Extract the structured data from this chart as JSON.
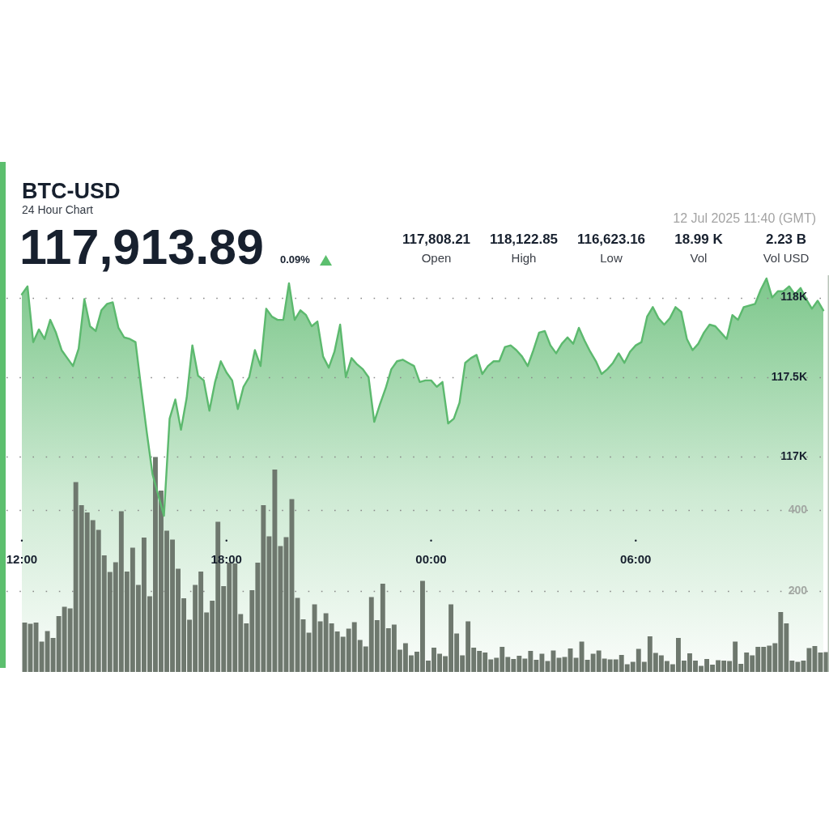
{
  "chart_data": {
    "type": "area",
    "title": "BTC-USD",
    "subtitle": "24 Hour Chart",
    "annotations": [
      "117,913.89",
      "0.09%",
      "12 Jul 2025 11:40 (GMT)",
      "117,808.21",
      "Open",
      "118,122.85",
      "High",
      "116,623.16",
      "Low",
      "18.99 K",
      "Vol",
      "2.23 B",
      "Vol USD"
    ],
    "x": [
      "2025-07-11T12:00",
      "2025-07-11T12:10",
      "2025-07-11T12:20",
      "2025-07-11T12:30",
      "2025-07-11T12:40",
      "2025-07-11T12:50",
      "2025-07-11T13:00",
      "2025-07-11T13:10",
      "2025-07-11T13:20",
      "2025-07-11T13:30",
      "2025-07-11T13:40",
      "2025-07-11T13:50",
      "2025-07-11T14:00",
      "2025-07-11T14:10",
      "2025-07-11T14:20",
      "2025-07-11T14:30",
      "2025-07-11T14:40",
      "2025-07-11T14:50",
      "2025-07-11T15:00",
      "2025-07-11T15:10",
      "2025-07-11T15:20",
      "2025-07-11T15:30",
      "2025-07-11T15:40",
      "2025-07-11T15:50",
      "2025-07-11T16:00",
      "2025-07-11T16:10",
      "2025-07-11T16:20",
      "2025-07-11T16:30",
      "2025-07-11T16:40",
      "2025-07-11T16:50",
      "2025-07-11T17:00",
      "2025-07-11T17:10",
      "2025-07-11T17:20",
      "2025-07-11T17:30",
      "2025-07-11T17:40",
      "2025-07-11T17:50",
      "2025-07-11T18:00",
      "2025-07-11T18:10",
      "2025-07-11T18:20",
      "2025-07-11T18:30",
      "2025-07-11T18:40",
      "2025-07-11T18:50",
      "2025-07-11T19:00",
      "2025-07-11T19:10",
      "2025-07-11T19:20",
      "2025-07-11T19:30",
      "2025-07-11T19:40",
      "2025-07-11T19:50",
      "2025-07-11T20:00",
      "2025-07-11T20:10",
      "2025-07-11T20:20",
      "2025-07-11T20:30",
      "2025-07-11T20:40",
      "2025-07-11T20:50",
      "2025-07-11T21:00",
      "2025-07-11T21:10",
      "2025-07-11T21:20",
      "2025-07-11T21:30",
      "2025-07-11T21:40",
      "2025-07-11T21:50",
      "2025-07-11T22:00",
      "2025-07-11T22:10",
      "2025-07-11T22:20",
      "2025-07-11T22:30",
      "2025-07-11T22:40",
      "2025-07-11T22:50",
      "2025-07-11T23:00",
      "2025-07-11T23:10",
      "2025-07-11T23:20",
      "2025-07-11T23:30",
      "2025-07-11T23:40",
      "2025-07-11T23:50",
      "2025-07-12T00:00",
      "2025-07-12T00:10",
      "2025-07-12T00:20",
      "2025-07-12T00:30",
      "2025-07-12T00:40",
      "2025-07-12T00:50",
      "2025-07-12T01:00",
      "2025-07-12T01:10",
      "2025-07-12T01:20",
      "2025-07-12T01:30",
      "2025-07-12T01:40",
      "2025-07-12T01:50",
      "2025-07-12T02:00",
      "2025-07-12T02:10",
      "2025-07-12T02:20",
      "2025-07-12T02:30",
      "2025-07-12T02:40",
      "2025-07-12T02:50",
      "2025-07-12T03:00",
      "2025-07-12T03:10",
      "2025-07-12T03:20",
      "2025-07-12T03:30",
      "2025-07-12T03:40",
      "2025-07-12T03:50",
      "2025-07-12T04:00",
      "2025-07-12T04:10",
      "2025-07-12T04:20",
      "2025-07-12T04:30",
      "2025-07-12T04:40",
      "2025-07-12T04:50",
      "2025-07-12T05:00",
      "2025-07-12T05:10",
      "2025-07-12T05:20",
      "2025-07-12T05:30",
      "2025-07-12T05:40",
      "2025-07-12T05:50",
      "2025-07-12T06:00",
      "2025-07-12T06:10",
      "2025-07-12T06:20",
      "2025-07-12T06:30",
      "2025-07-12T06:40",
      "2025-07-12T06:50",
      "2025-07-12T07:00",
      "2025-07-12T07:10",
      "2025-07-12T07:20",
      "2025-07-12T07:30",
      "2025-07-12T07:40",
      "2025-07-12T07:50",
      "2025-07-12T08:00",
      "2025-07-12T08:10",
      "2025-07-12T08:20",
      "2025-07-12T08:30",
      "2025-07-12T08:40",
      "2025-07-12T08:50",
      "2025-07-12T09:00",
      "2025-07-12T09:10",
      "2025-07-12T09:20",
      "2025-07-12T09:30",
      "2025-07-12T09:40",
      "2025-07-12T09:50",
      "2025-07-12T10:00",
      "2025-07-12T10:10",
      "2025-07-12T10:20",
      "2025-07-12T10:30",
      "2025-07-12T10:40",
      "2025-07-12T10:50",
      "2025-07-12T11:00",
      "2025-07-12T11:10",
      "2025-07-12T11:20",
      "2025-07-12T11:30"
    ],
    "xlim": [
      "2025-07-11T11:33",
      "2025-07-12T11:40"
    ],
    "xticks": [
      {
        "value": "2025-07-11T12:00",
        "label": "12:00"
      },
      {
        "value": "2025-07-11T18:00",
        "label": "18:00"
      },
      {
        "value": "2025-07-12T00:00",
        "label": "00:00"
      },
      {
        "value": "2025-07-12T06:00",
        "label": "06:00"
      }
    ],
    "ylim": [
      115650,
      118140
    ],
    "yticks": [
      {
        "value": 117000,
        "label": "117K"
      },
      {
        "value": 117500,
        "label": "117.5K"
      },
      {
        "value": 118000,
        "label": "118K"
      }
    ],
    "y2lim": [
      0,
      980
    ],
    "y2ticks": [
      200,
      400
    ],
    "grid": "y",
    "series": [
      {
        "color": "#5cb96e",
        "values": [
          118020,
          118070,
          117720,
          117800,
          117740,
          117860,
          117780,
          117670,
          117620,
          117570,
          117680,
          117990,
          117820,
          117790,
          117920,
          117960,
          117970,
          117810,
          117750,
          117740,
          117720,
          117430,
          117150,
          116890,
          116760,
          116630,
          117240,
          117360,
          117170,
          117370,
          117700,
          117510,
          117480,
          117290,
          117470,
          117600,
          117530,
          117480,
          117300,
          117440,
          117500,
          117670,
          117570,
          117930,
          117880,
          117860,
          117860,
          118090,
          117860,
          117920,
          117890,
          117820,
          117850,
          117630,
          117560,
          117660,
          117830,
          117500,
          117620,
          117580,
          117550,
          117500,
          117220,
          117330,
          117430,
          117550,
          117600,
          117610,
          117590,
          117570,
          117470,
          117480,
          117480,
          117440,
          117470,
          117210,
          117240,
          117340,
          117590,
          117620,
          117640,
          117520,
          117570,
          117600,
          117600,
          117690,
          117700,
          117670,
          117630,
          117570,
          117670,
          117780,
          117790,
          117700,
          117650,
          117710,
          117750,
          117710,
          117810,
          117730,
          117660,
          117600,
          117520,
          117550,
          117590,
          117650,
          117590,
          117660,
          117700,
          117720,
          117880,
          117940,
          117870,
          117830,
          117870,
          117940,
          117910,
          117740,
          117670,
          117710,
          117780,
          117830,
          117820,
          117780,
          117740,
          117890,
          117860,
          117940,
          117950,
          117960,
          118050,
          118120,
          118000,
          118040,
          118040,
          118070,
          118020,
          118060,
          117990,
          117930,
          117980,
          117920
        ]
      },
      {
        "type": "bar",
        "axis": "y2",
        "color": "#6e786e",
        "x": [
          "2025-07-11T12:05",
          "2025-07-11T12:15",
          "2025-07-11T12:25",
          "2025-07-11T12:35",
          "2025-07-11T12:45",
          "2025-07-11T12:55",
          "2025-07-11T13:05",
          "2025-07-11T13:15",
          "2025-07-11T13:25",
          "2025-07-11T13:35",
          "2025-07-11T13:45",
          "2025-07-11T13:55",
          "2025-07-11T14:05",
          "2025-07-11T14:15",
          "2025-07-11T14:25",
          "2025-07-11T14:35",
          "2025-07-11T14:45",
          "2025-07-11T14:55",
          "2025-07-11T15:05",
          "2025-07-11T15:15",
          "2025-07-11T15:25",
          "2025-07-11T15:35",
          "2025-07-11T15:45",
          "2025-07-11T15:55",
          "2025-07-11T16:05",
          "2025-07-11T16:15",
          "2025-07-11T16:25",
          "2025-07-11T16:35",
          "2025-07-11T16:45",
          "2025-07-11T16:55",
          "2025-07-11T17:05",
          "2025-07-11T17:15",
          "2025-07-11T17:25",
          "2025-07-11T17:35",
          "2025-07-11T17:45",
          "2025-07-11T17:55",
          "2025-07-11T18:05",
          "2025-07-11T18:15",
          "2025-07-11T18:25",
          "2025-07-11T18:35",
          "2025-07-11T18:45",
          "2025-07-11T18:55",
          "2025-07-11T19:05",
          "2025-07-11T19:15",
          "2025-07-11T19:25",
          "2025-07-11T19:35",
          "2025-07-11T19:45",
          "2025-07-11T19:55",
          "2025-07-11T20:05",
          "2025-07-11T20:15",
          "2025-07-11T20:25",
          "2025-07-11T20:35",
          "2025-07-11T20:45",
          "2025-07-11T20:55",
          "2025-07-11T21:05",
          "2025-07-11T21:15",
          "2025-07-11T21:25",
          "2025-07-11T21:35",
          "2025-07-11T21:45",
          "2025-07-11T21:55",
          "2025-07-11T22:05",
          "2025-07-11T22:15",
          "2025-07-11T22:25",
          "2025-07-11T22:35",
          "2025-07-11T22:45",
          "2025-07-11T22:55",
          "2025-07-11T23:05",
          "2025-07-11T23:15",
          "2025-07-11T23:25",
          "2025-07-11T23:35",
          "2025-07-11T23:45",
          "2025-07-11T23:55",
          "2025-07-12T00:05",
          "2025-07-12T00:15",
          "2025-07-12T00:25",
          "2025-07-12T00:35",
          "2025-07-12T00:45",
          "2025-07-12T00:55",
          "2025-07-12T01:05",
          "2025-07-12T01:15",
          "2025-07-12T01:25",
          "2025-07-12T01:35",
          "2025-07-12T01:45",
          "2025-07-12T01:55",
          "2025-07-12T02:05",
          "2025-07-12T02:15",
          "2025-07-12T02:25",
          "2025-07-12T02:35",
          "2025-07-12T02:45",
          "2025-07-12T02:55",
          "2025-07-12T03:05",
          "2025-07-12T03:15",
          "2025-07-12T03:25",
          "2025-07-12T03:35",
          "2025-07-12T03:45",
          "2025-07-12T03:55",
          "2025-07-12T04:05",
          "2025-07-12T04:15",
          "2025-07-12T04:25",
          "2025-07-12T04:35",
          "2025-07-12T04:45",
          "2025-07-12T04:55",
          "2025-07-12T05:05",
          "2025-07-12T05:15",
          "2025-07-12T05:25",
          "2025-07-12T05:35",
          "2025-07-12T05:45",
          "2025-07-12T05:55",
          "2025-07-12T06:05",
          "2025-07-12T06:15",
          "2025-07-12T06:25",
          "2025-07-12T06:35",
          "2025-07-12T06:45",
          "2025-07-12T06:55",
          "2025-07-12T07:05",
          "2025-07-12T07:15",
          "2025-07-12T07:25",
          "2025-07-12T07:35",
          "2025-07-12T07:45",
          "2025-07-12T07:55",
          "2025-07-12T08:05",
          "2025-07-12T08:15",
          "2025-07-12T08:25",
          "2025-07-12T08:35",
          "2025-07-12T08:45",
          "2025-07-12T08:55",
          "2025-07-12T09:05",
          "2025-07-12T09:15",
          "2025-07-12T09:25",
          "2025-07-12T09:35",
          "2025-07-12T09:45",
          "2025-07-12T09:55",
          "2025-07-12T10:05",
          "2025-07-12T10:15",
          "2025-07-12T10:25",
          "2025-07-12T10:35",
          "2025-07-12T10:45",
          "2025-07-12T10:55",
          "2025-07-12T11:05",
          "2025-07-12T11:15",
          "2025-07-12T11:25",
          "2025-07-12T11:35"
        ],
        "values": [
          122,
          119,
          122,
          75,
          101,
          84,
          138,
          161,
          157,
          469,
          412,
          394,
          375,
          351,
          288,
          247,
          271,
          397,
          248,
          307,
          215,
          332,
          187,
          531,
          448,
          349,
          327,
          255,
          182,
          129,
          215,
          248,
          147,
          176,
          371,
          212,
          270,
          268,
          143,
          120,
          202,
          270,
          412,
          335,
          500,
          311,
          333,
          427,
          183,
          130,
          97,
          167,
          125,
          145,
          120,
          100,
          87,
          107,
          123,
          79,
          63,
          185,
          128,
          218,
          108,
          117,
          55,
          71,
          41,
          50,
          225,
          28,
          60,
          45,
          39,
          167,
          95,
          41,
          125,
          60,
          52,
          48,
          31,
          35,
          62,
          37,
          32,
          40,
          33,
          52,
          30,
          45,
          27,
          53,
          35,
          37,
          58,
          35,
          75,
          30,
          45,
          53,
          33,
          31,
          31,
          42,
          19,
          25,
          57,
          25,
          88,
          47,
          41,
          27,
          19,
          84,
          28,
          46,
          28,
          15,
          32,
          18,
          29,
          28,
          27,
          75,
          20,
          48,
          41,
          62,
          62,
          65,
          71,
          148,
          120,
          28,
          25,
          28,
          59,
          64,
          48,
          49
        ]
      }
    ]
  }
}
